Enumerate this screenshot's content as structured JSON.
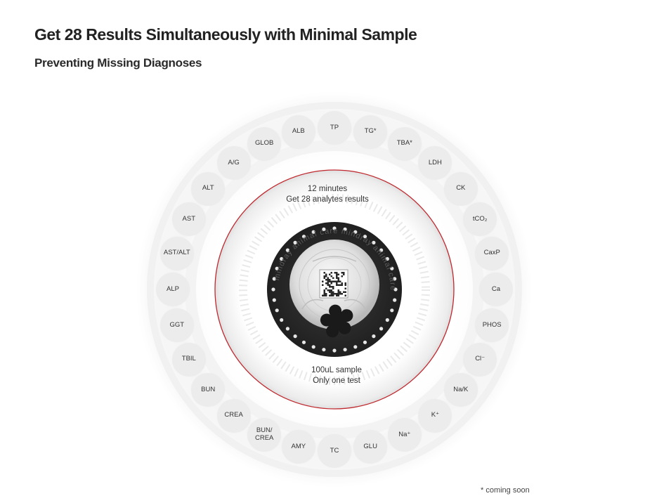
{
  "header": {
    "title": "Get 28 Results Simultaneously with Minimal Sample",
    "subtitle": "Preventing Missing Diagnoses"
  },
  "center": {
    "time_line1": "12 minutes",
    "time_line2": "Get 28 analytes results",
    "sample_line1": "100uL sample",
    "sample_line2": "Only one test"
  },
  "disc": {
    "brand_text": "mindray animal care"
  },
  "analytes": [
    "TP",
    "TG*",
    "TBA*",
    "LDH",
    "CK",
    "tCO₂",
    "CaxP",
    "Ca",
    "PHOS",
    "Cl⁻",
    "Na/K",
    "K⁺",
    "Na⁺",
    "GLU",
    "TC",
    "AMY",
    "BUN/\nCREA",
    "CREA",
    "BUN",
    "TBIL",
    "GGT",
    "ALP",
    "AST/ALT",
    "AST",
    "ALT",
    "A/G",
    "GLOB",
    "ALB"
  ],
  "footnote": "* coming soon",
  "colors": {
    "accent_ring": "#c0282e",
    "bubble": "#ececec",
    "disc": "#2b2b2b"
  }
}
